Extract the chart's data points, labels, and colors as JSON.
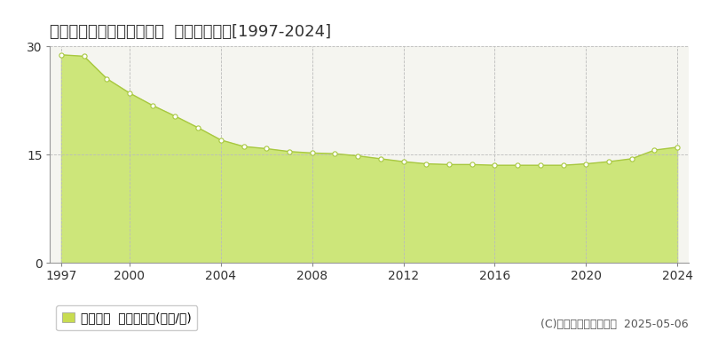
{
  "title": "札幌市手稲区西宮の沢五条  基準地価推移[1997-2024]",
  "years": [
    1997,
    1998,
    1999,
    2000,
    2001,
    2002,
    2003,
    2004,
    2005,
    2006,
    2007,
    2008,
    2009,
    2010,
    2011,
    2012,
    2013,
    2014,
    2015,
    2016,
    2017,
    2018,
    2019,
    2020,
    2021,
    2022,
    2023,
    2024
  ],
  "values": [
    28.8,
    28.6,
    25.5,
    23.5,
    21.8,
    20.3,
    18.7,
    17.0,
    16.1,
    15.8,
    15.4,
    15.2,
    15.1,
    14.8,
    14.4,
    14.0,
    13.7,
    13.6,
    13.6,
    13.5,
    13.5,
    13.5,
    13.5,
    13.7,
    14.0,
    14.4,
    15.6,
    16.0
  ],
  "line_color": "#a8c840",
  "fill_color": "#cde67a",
  "marker_facecolor": "white",
  "marker_edgecolor": "#a8c840",
  "ylim": [
    0,
    30
  ],
  "yticks": [
    0,
    15,
    30
  ],
  "xlim_start": 1996.5,
  "xlim_end": 2024.5,
  "xticks": [
    1997,
    2000,
    2004,
    2008,
    2012,
    2016,
    2020,
    2024
  ],
  "grid_color": "#bbbbbb",
  "plot_bg_color": "#f5f5f0",
  "fig_bg_color": "#ffffff",
  "legend_label": "基準地価  平均坪単価(万円/坪)",
  "legend_square_color": "#c8dc50",
  "copyright_text": "(C)土地価格ドットコム  2025-05-06",
  "title_fontsize": 13,
  "tick_fontsize": 10,
  "legend_fontsize": 10,
  "copyright_fontsize": 9
}
